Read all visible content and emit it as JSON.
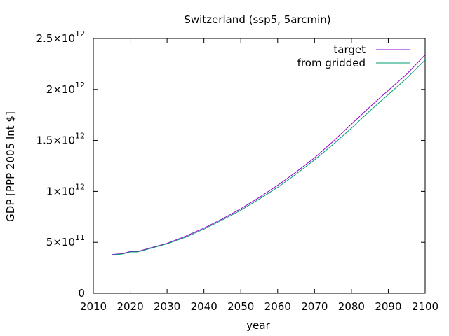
{
  "chart_data": {
    "type": "line",
    "title": "Switzerland (ssp5, 5arcmin)",
    "xlabel": "year",
    "ylabel": "GDP [PPP 2005 Int $]",
    "xlim": [
      2010,
      2100
    ],
    "ylim": [
      0,
      2500000000000.0
    ],
    "grid": false,
    "legend_position": "top-right",
    "x_ticks": [
      2010,
      2020,
      2030,
      2040,
      2050,
      2060,
      2070,
      2080,
      2090,
      2100
    ],
    "x_tick_labels": [
      "2010",
      "2020",
      "2030",
      "2040",
      "2050",
      "2060",
      "2070",
      "2080",
      "2090",
      "2100"
    ],
    "y_ticks": [
      0,
      500000000000.0,
      1000000000000.0,
      1500000000000.0,
      2000000000000.0,
      2500000000000.0
    ],
    "y_tick_labels": [
      {
        "mantissa": "0",
        "exponent": ""
      },
      {
        "mantissa": "5×10",
        "exponent": "11"
      },
      {
        "mantissa": "1×10",
        "exponent": "12"
      },
      {
        "mantissa": "1.5×10",
        "exponent": "12"
      },
      {
        "mantissa": "2×10",
        "exponent": "12"
      },
      {
        "mantissa": "2.5×10",
        "exponent": "12"
      }
    ],
    "x": [
      2015,
      2018,
      2020,
      2022,
      2025,
      2030,
      2035,
      2040,
      2045,
      2050,
      2055,
      2060,
      2065,
      2070,
      2075,
      2080,
      2085,
      2090,
      2095,
      2100
    ],
    "series": [
      {
        "name": "target",
        "color": "#9400d3",
        "values": [
          380000000000.0,
          390000000000.0,
          410000000000.0,
          410000000000.0,
          440000000000.0,
          490000000000.0,
          560000000000.0,
          640000000000.0,
          730000000000.0,
          830000000000.0,
          940000000000.0,
          1060000000000.0,
          1190000000000.0,
          1330000000000.0,
          1490000000000.0,
          1660000000000.0,
          1830000000000.0,
          1990000000000.0,
          2150000000000.0,
          2340000000000.0
        ]
      },
      {
        "name": "from gridded",
        "color": "#009e73",
        "values": [
          375000000000.0,
          385000000000.0,
          405000000000.0,
          405000000000.0,
          435000000000.0,
          485000000000.0,
          550000000000.0,
          630000000000.0,
          720000000000.0,
          815000000000.0,
          925000000000.0,
          1040000000000.0,
          1170000000000.0,
          1310000000000.0,
          1460000000000.0,
          1620000000000.0,
          1790000000000.0,
          1950000000000.0,
          2110000000000.0,
          2290000000000.0
        ]
      }
    ]
  }
}
